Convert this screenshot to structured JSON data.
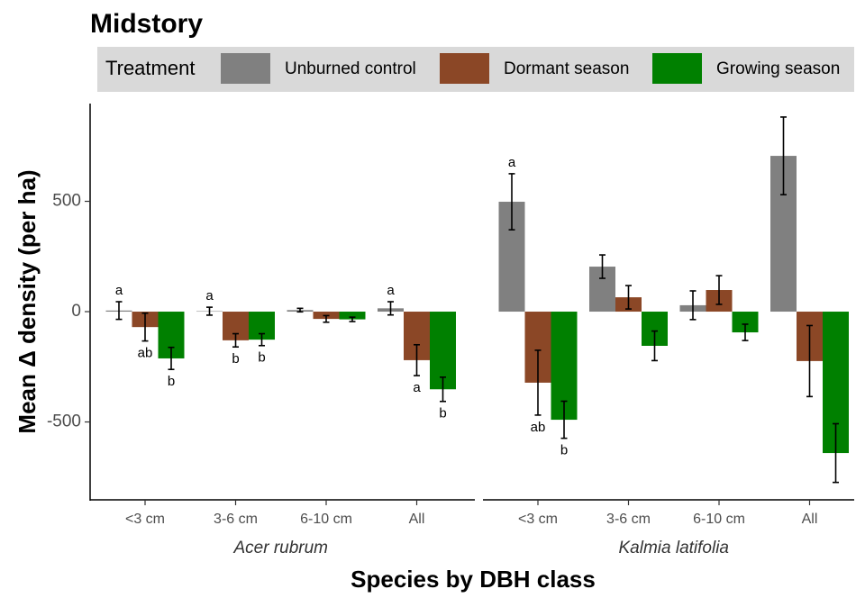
{
  "chart_data": {
    "type": "bar",
    "title": "Midstory",
    "legend_title": "Treatment",
    "y_label": "Mean Δ density (per ha)",
    "x_label": "Species by DBH class",
    "ylim": [
      -853,
      943
    ],
    "yticks": [
      -500,
      0,
      500
    ],
    "grid": false,
    "panels": [
      {
        "label": "Acer rubrum",
        "categories": [
          "<3 cm",
          "3-6 cm",
          "6-10 cm",
          "All"
        ]
      },
      {
        "label": "Kalmia latifolia",
        "categories": [
          "<3 cm",
          "3-6 cm",
          "6-10 cm",
          "All"
        ]
      }
    ],
    "series": [
      {
        "name": "Unburned control",
        "color": "#808080",
        "values": [
          [
            5,
            2,
            7,
            15
          ],
          [
            498,
            204,
            29,
            706
          ]
        ],
        "errors": [
          [
            40,
            18,
            8,
            30
          ],
          [
            127,
            53,
            65,
            176
          ]
        ],
        "letters": [
          [
            "a",
            "a",
            null,
            "a"
          ],
          [
            "a",
            null,
            null,
            null
          ]
        ]
      },
      {
        "name": "Dormant season",
        "color": "#8b4726",
        "values": [
          [
            -70,
            -130,
            -33,
            -220
          ],
          [
            -322,
            65,
            98,
            -224
          ]
        ],
        "errors": [
          [
            63,
            30,
            15,
            70
          ],
          [
            147,
            53,
            65,
            161
          ]
        ],
        "letters": [
          [
            "ab",
            "b",
            null,
            "a"
          ],
          [
            "ab",
            null,
            null,
            null
          ]
        ]
      },
      {
        "name": "Growing season",
        "color": "#008000",
        "values": [
          [
            -212,
            -127,
            -35,
            -352
          ],
          [
            -490,
            -155,
            -94,
            -641
          ]
        ],
        "errors": [
          [
            50,
            27,
            10,
            55
          ],
          [
            84,
            67,
            37,
            133
          ]
        ],
        "letters": [
          [
            "b",
            "b",
            null,
            "b"
          ],
          [
            "b",
            null,
            null,
            null
          ]
        ]
      }
    ]
  }
}
